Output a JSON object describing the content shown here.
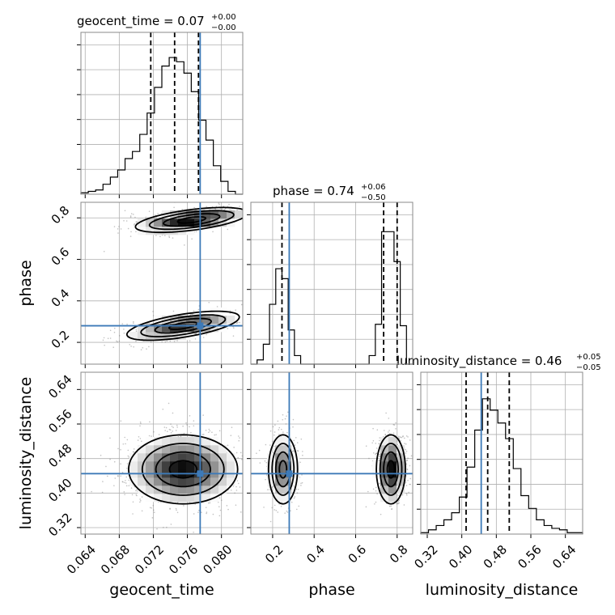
{
  "chart_data": {
    "type": "corner",
    "parameters": [
      "geocent_time",
      "phase",
      "luminosity_distance"
    ],
    "truth": {
      "geocent_time": 0.0775,
      "phase": 0.28,
      "luminosity_distance": 0.445
    },
    "colors": {
      "truth": "#3d7ab8",
      "hist": "#000000",
      "grid": "#b0b0b0",
      "quantile": "#000000"
    },
    "panels": {
      "geocent_time": {
        "title_main": "geocent_time = 0.07",
        "title_sup": "+0.00",
        "title_sub": "−0.00",
        "range": [
          0.0635,
          0.0825
        ],
        "ticks": [
          0.064,
          0.068,
          0.072,
          0.076,
          0.08
        ],
        "tick_labels": [
          "0.064",
          "0.068",
          "0.072",
          "0.076",
          "0.080"
        ],
        "quantiles": [
          0.0717,
          0.0745,
          0.0773
        ],
        "hist": [
          0.01,
          0.02,
          0.03,
          0.07,
          0.12,
          0.17,
          0.25,
          0.3,
          0.42,
          0.57,
          0.75,
          0.9,
          0.96,
          0.93,
          0.85,
          0.72,
          0.52,
          0.38,
          0.2,
          0.09,
          0.02,
          0.0
        ]
      },
      "phase": {
        "title_main": "phase = 0.74",
        "title_sup": "+0.06",
        "title_sub": "−0.50",
        "range": [
          0.095,
          0.875
        ],
        "ticks": [
          0.2,
          0.4,
          0.6,
          0.8
        ],
        "tick_labels": [
          "0.2",
          "0.4",
          "0.6",
          "0.8"
        ],
        "quantiles": [
          0.245,
          0.735,
          0.8
        ],
        "hist": [
          0.0,
          0.03,
          0.14,
          0.42,
          0.67,
          0.6,
          0.24,
          0.06,
          0.0,
          0.0,
          0.0,
          0.0,
          0.0,
          0.0,
          0.0,
          0.0,
          0.0,
          0.0,
          0.0,
          0.06,
          0.28,
          0.93,
          0.93,
          0.72,
          0.27,
          0.0
        ]
      },
      "luminosity_distance": {
        "title_main": "luminosity_distance = 0.46",
        "title_sup": "+0.05",
        "title_sub": "−0.05",
        "range": [
          0.305,
          0.68
        ],
        "ticks": [
          0.32,
          0.4,
          0.48,
          0.56,
          0.64
        ],
        "tick_labels": [
          "0.32",
          "0.40",
          "0.48",
          "0.56",
          "0.64"
        ],
        "quantiles": [
          0.41,
          0.46,
          0.51
        ],
        "hist": [
          0.01,
          0.03,
          0.06,
          0.1,
          0.15,
          0.26,
          0.47,
          0.73,
          0.95,
          0.87,
          0.78,
          0.67,
          0.46,
          0.27,
          0.18,
          0.1,
          0.06,
          0.04,
          0.03,
          0.01,
          0.01
        ]
      }
    },
    "pairs": [
      {
        "x": "geocent_time",
        "y": "phase",
        "modes": [
          {
            "x": 0.0765,
            "y": 0.79,
            "sx": 0.0033,
            "sy": 0.03,
            "rho": 0.55,
            "w": 0.55
          },
          {
            "x": 0.0755,
            "y": 0.28,
            "sx": 0.0033,
            "sy": 0.035,
            "rho": 0.6,
            "w": 0.45
          }
        ]
      },
      {
        "x": "geocent_time",
        "y": "luminosity_distance",
        "modes": [
          {
            "x": 0.0755,
            "y": 0.455,
            "sx": 0.0032,
            "sy": 0.04,
            "rho": 0.0,
            "w": 1.0
          }
        ]
      },
      {
        "x": "phase",
        "y": "luminosity_distance",
        "modes": [
          {
            "x": 0.25,
            "y": 0.455,
            "sx": 0.035,
            "sy": 0.04,
            "rho": 0.0,
            "w": 0.42
          },
          {
            "x": 0.77,
            "y": 0.455,
            "sx": 0.035,
            "sy": 0.04,
            "rho": 0.0,
            "w": 0.58
          }
        ]
      }
    ]
  }
}
